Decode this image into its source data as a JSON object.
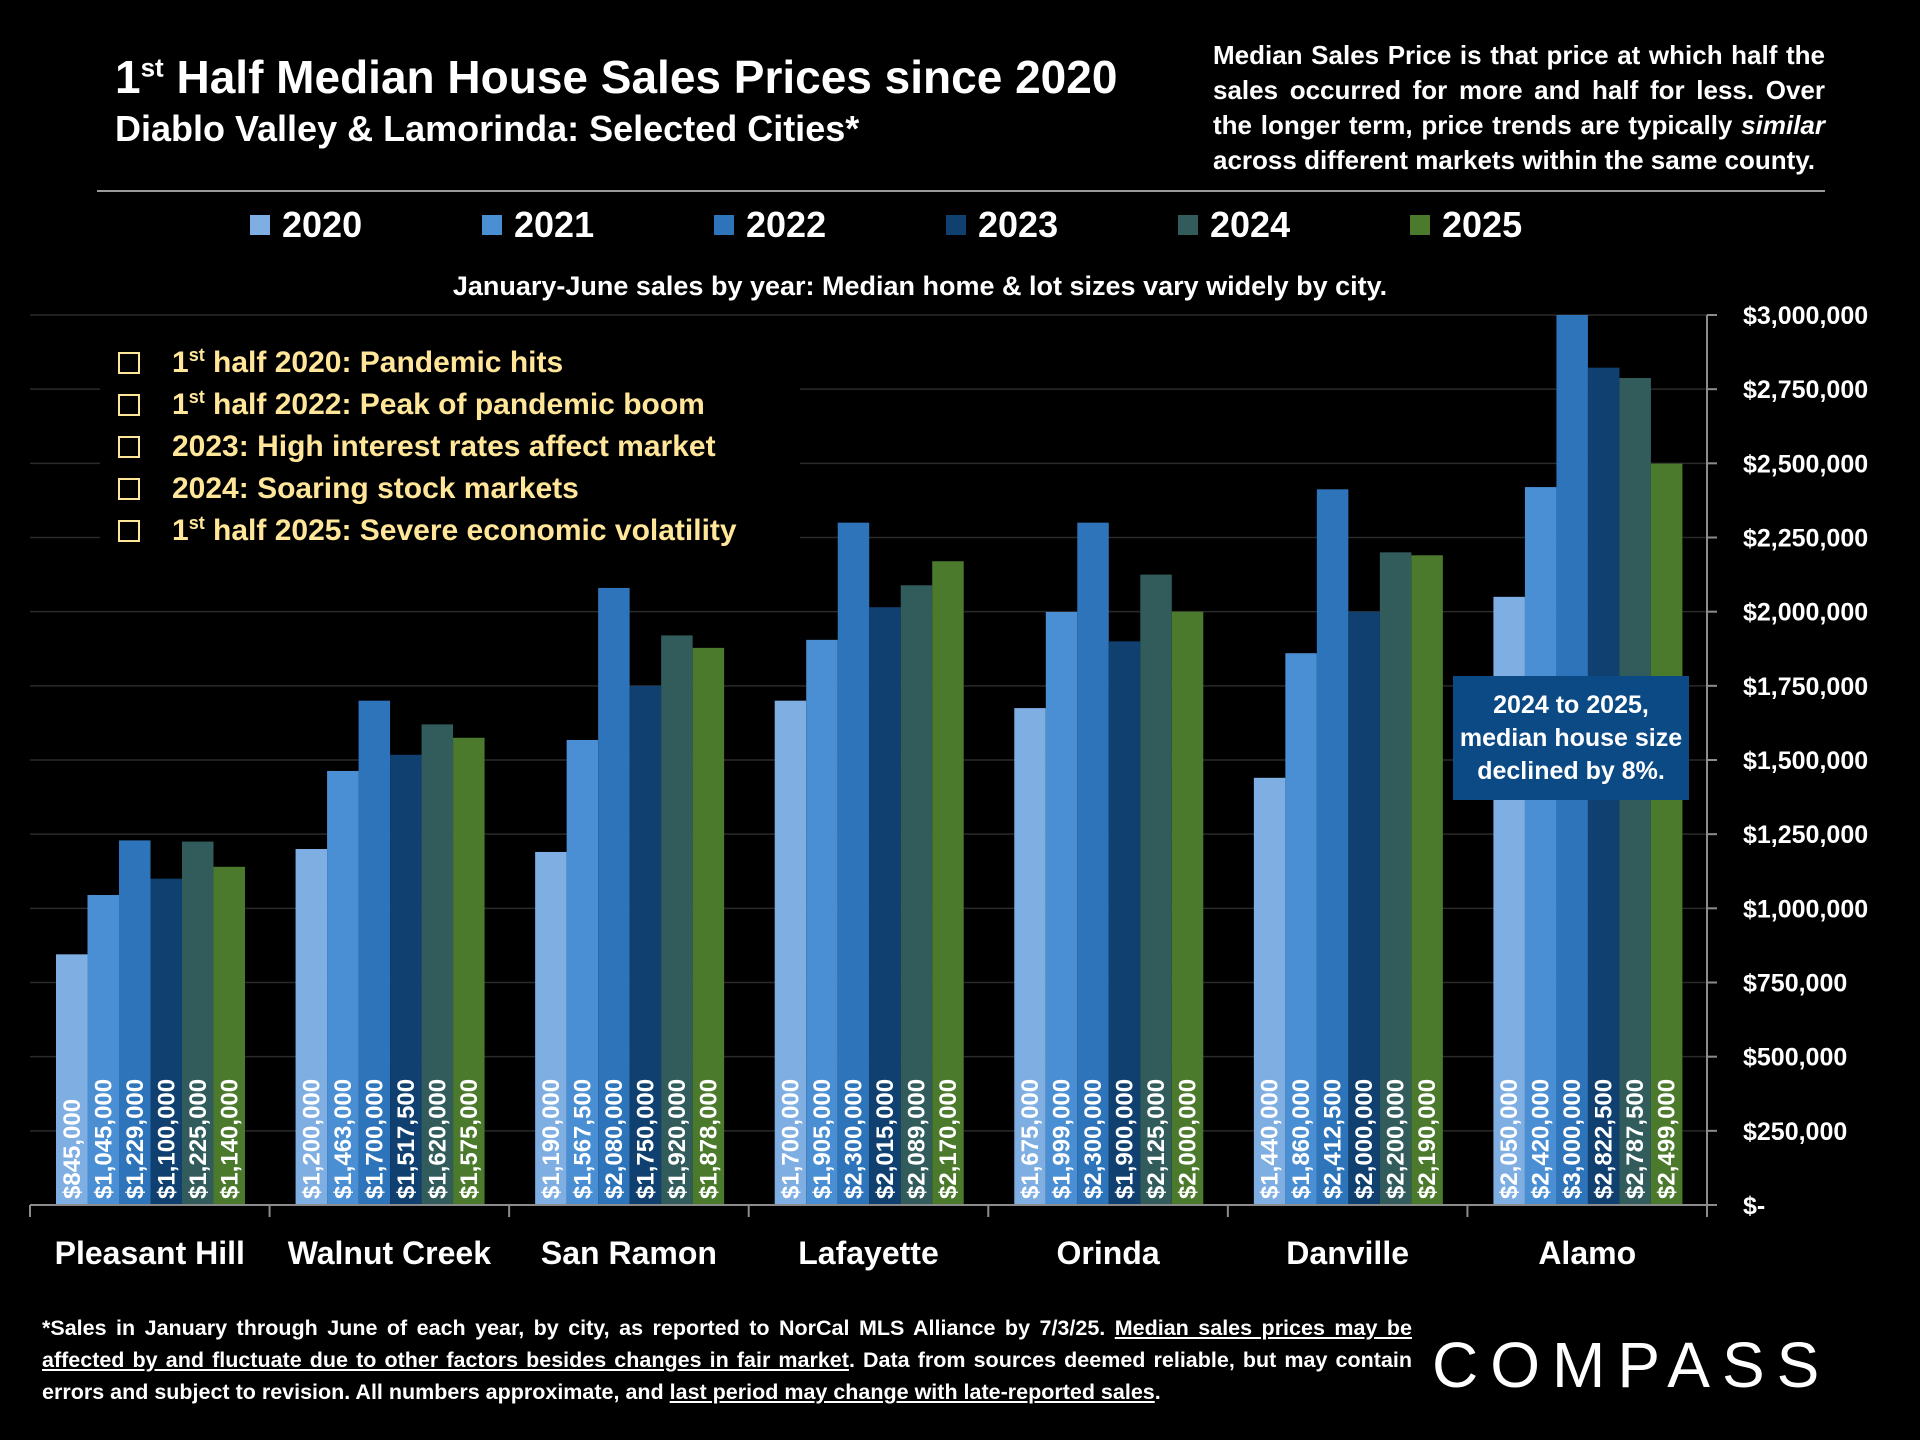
{
  "header": {
    "title_pre": "1",
    "title_sup": "st",
    "title_post": " Half Median House Sales Prices since 2020",
    "subtitle": "Diablo Valley & Lamorinda: Selected Cities*",
    "description_part1": "Median Sales Price is that price at which half the sales occurred for more and half for less. Over the longer term, price trends are typically ",
    "description_italic": "similar",
    "description_part2": " across different markets within the same county."
  },
  "chart_subtitle": "January-June sales by year: Median home & lot sizes vary widely by city.",
  "notes": [
    {
      "pre": "1",
      "sup": "st",
      "post": " half 2020: Pandemic hits"
    },
    {
      "pre": "1",
      "sup": "st",
      "post": " half 2022:  Peak of pandemic boom"
    },
    {
      "pre": "",
      "sup": "",
      "post": "2023:  High interest rates affect market"
    },
    {
      "pre": "",
      "sup": "",
      "post": "2024:  Soaring stock markets"
    },
    {
      "pre": "1",
      "sup": "st",
      "post": " half 2025:  Severe economic volatility"
    }
  ],
  "callout": {
    "line1": "2024 to 2025,",
    "line2": "median house size",
    "line3": "declined by 8%."
  },
  "footnote": {
    "part1": "*Sales in January through June of each year, by city, as reported to NorCal MLS Alliance by 7/3/25. ",
    "underline1": "Median sales prices may be affected by and fluctuate due to other factors besides changes in fair market",
    "part2": ". Data from sources deemed reliable, but may contain errors and subject to revision. All numbers approximate, and ",
    "underline2": "last period may change with late-reported sales",
    "part3": "."
  },
  "logo": {
    "text": "COMPASS"
  },
  "colors": {
    "2020": "#7eaee2",
    "2021": "#4a8ed3",
    "2022": "#2e74ba",
    "2023": "#0f4070",
    "2024": "#325c5c",
    "2025": "#4b7a2c"
  },
  "chart_data": {
    "type": "bar",
    "categories": [
      "Pleasant Hill",
      "Walnut Creek",
      "San Ramon",
      "Lafayette",
      "Orinda",
      "Danville",
      "Alamo"
    ],
    "series": [
      {
        "name": "2020",
        "values": [
          845000,
          1200000,
          1190000,
          1700000,
          1675000,
          1440000,
          2050000
        ],
        "labels": [
          "$845,000",
          "$1,200,000",
          "$1,190,000",
          "$1,700,000",
          "$1,675,000",
          "$1,440,000",
          "$2,050,000"
        ]
      },
      {
        "name": "2021",
        "values": [
          1045000,
          1463000,
          1567500,
          1905000,
          1999000,
          1860000,
          2420000
        ],
        "labels": [
          "$1,045,000",
          "$1,463,000",
          "$1,567,500",
          "$1,905,000",
          "$1,999,000",
          "$1,860,000",
          "$2,420,000"
        ]
      },
      {
        "name": "2022",
        "values": [
          1229000,
          1700000,
          2080000,
          2300000,
          2300000,
          2412500,
          3000000
        ],
        "labels": [
          "$1,229,000",
          "$1,700,000",
          "$2,080,000",
          "$2,300,000",
          "$2,300,000",
          "$2,412,500",
          "$3,000,000"
        ]
      },
      {
        "name": "2023",
        "values": [
          1100000,
          1517500,
          1750000,
          2015000,
          1900000,
          2000000,
          2822500
        ],
        "labels": [
          "$1,100,000",
          "$1,517,500",
          "$1,750,000",
          "$2,015,000",
          "$1,900,000",
          "$2,000,000",
          "$2,822,500"
        ]
      },
      {
        "name": "2024",
        "values": [
          1225000,
          1620000,
          1920000,
          2089000,
          2125000,
          2200000,
          2787500
        ],
        "labels": [
          "$1,225,000",
          "$1,620,000",
          "$1,920,000",
          "$2,089,000",
          "$2,125,000",
          "$2,200,000",
          "$2,787,500"
        ]
      },
      {
        "name": "2025",
        "values": [
          1140000,
          1575000,
          1878000,
          2170000,
          2000000,
          2190000,
          2499000
        ],
        "labels": [
          "$1,140,000",
          "$1,575,000",
          "$1,878,000",
          "$2,170,000",
          "$2,000,000",
          "$2,190,000",
          "$2,499,000"
        ]
      }
    ],
    "ylim": [
      0,
      3000000
    ],
    "yticks": [
      0,
      250000,
      500000,
      750000,
      1000000,
      1250000,
      1500000,
      1750000,
      2000000,
      2250000,
      2500000,
      2750000,
      3000000
    ],
    "ytick_labels": [
      "$-",
      "$250,000",
      "$500,000",
      "$750,000",
      "$1,000,000",
      "$1,250,000",
      "$1,500,000",
      "$1,750,000",
      "$2,000,000",
      "$2,250,000",
      "$2,500,000",
      "$2,750,000",
      "$3,000,000"
    ],
    "yaxis_position": "right",
    "grid": true,
    "legend_position": "top"
  }
}
